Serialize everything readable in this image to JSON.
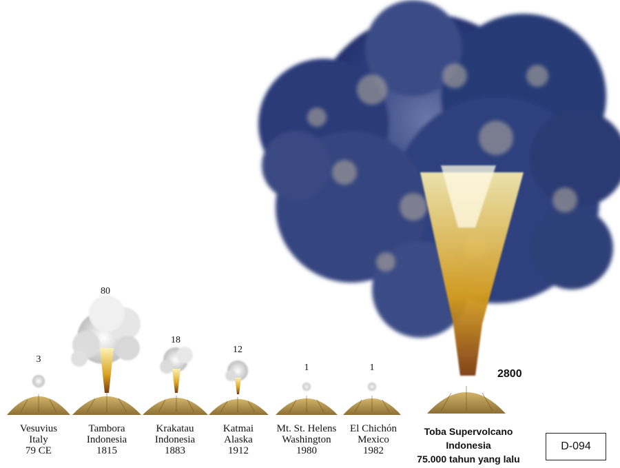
{
  "eruptions": [
    {
      "name": "Vesuvius",
      "place": "Italy",
      "year": "79 CE",
      "volume": "3"
    },
    {
      "name": "Tambora",
      "place": "Indonesia",
      "year": "1815",
      "volume": "80"
    },
    {
      "name": "Krakatau",
      "place": "Indonesia",
      "year": "1883",
      "volume": "18"
    },
    {
      "name": "Katmai",
      "place": "Alaska",
      "year": "1912",
      "volume": "12"
    },
    {
      "name": "Mt. St. Helens",
      "place": "Washington",
      "year": "1980",
      "volume": "1"
    },
    {
      "name": "El Chichón",
      "place": "Mexico",
      "year": "1982",
      "volume": "1"
    }
  ],
  "toba": {
    "name": "Toba Supervolcano",
    "place": "Indonesia",
    "time": "75.000 tahun yang lalu",
    "volume": "2800"
  },
  "code": "D-094",
  "colors": {
    "cloud_dark": "#1f2f6b",
    "cloud_light": "#c8cfe0",
    "ash_plume": "#e8e8e8",
    "fire": "#f0c040",
    "mountain": "#a88a4a"
  }
}
